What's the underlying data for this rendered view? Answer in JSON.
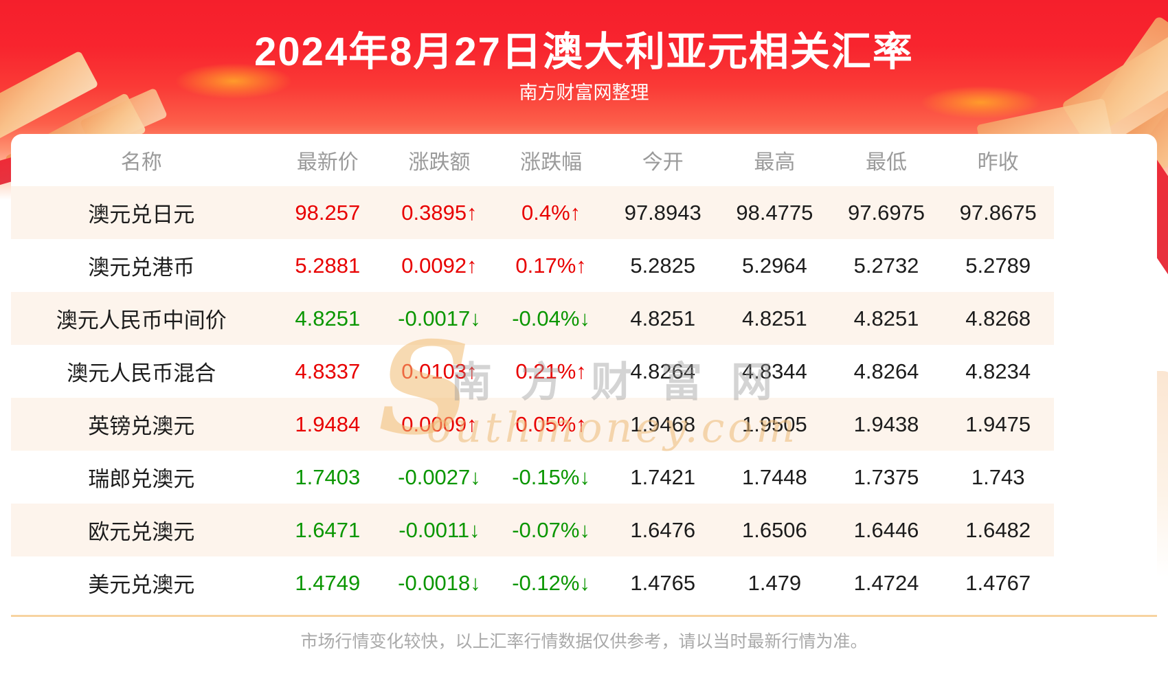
{
  "chart_data": {
    "type": "table",
    "title": "2024年8月27日澳大利亚元相关汇率",
    "subtitle": "南方财富网整理",
    "columns": [
      "名称",
      "最新价",
      "涨跌额",
      "涨跌幅",
      "今开",
      "最高",
      "最低",
      "昨收"
    ],
    "rows": [
      {
        "cells": [
          "澳元兑日元",
          "98.257",
          "0.3895↑",
          "0.4%↑",
          "97.8943",
          "98.4775",
          "97.6975",
          "97.8675"
        ],
        "direction": "up"
      },
      {
        "cells": [
          "澳元兑港币",
          "5.2881",
          "0.0092↑",
          "0.17%↑",
          "5.2825",
          "5.2964",
          "5.2732",
          "5.2789"
        ],
        "direction": "up"
      },
      {
        "cells": [
          "澳元人民币中间价",
          "4.8251",
          "-0.0017↓",
          "-0.04%↓",
          "4.8251",
          "4.8251",
          "4.8251",
          "4.8268"
        ],
        "direction": "down"
      },
      {
        "cells": [
          "澳元人民币混合",
          "4.8337",
          "0.0103↑",
          "0.21%↑",
          "4.8264",
          "4.8344",
          "4.8264",
          "4.8234"
        ],
        "direction": "up"
      },
      {
        "cells": [
          "英镑兑澳元",
          "1.9484",
          "0.0009↑",
          "0.05%↑",
          "1.9468",
          "1.9505",
          "1.9438",
          "1.9475"
        ],
        "direction": "up"
      },
      {
        "cells": [
          "瑞郎兑澳元",
          "1.7403",
          "-0.0027↓",
          "-0.15%↓",
          "1.7421",
          "1.7448",
          "1.7375",
          "1.743"
        ],
        "direction": "down"
      },
      {
        "cells": [
          "欧元兑澳元",
          "1.6471",
          "-0.0011↓",
          "-0.07%↓",
          "1.6476",
          "1.6506",
          "1.6446",
          "1.6482"
        ],
        "direction": "down"
      },
      {
        "cells": [
          "美元兑澳元",
          "1.4749",
          "-0.0018↓",
          "-0.12%↓",
          "1.4765",
          "1.479",
          "1.4724",
          "1.4767"
        ],
        "direction": "down"
      }
    ]
  },
  "watermark": {
    "initial": "S",
    "cn": "南方财富网",
    "en": "outhmoney.com"
  },
  "footer": {
    "note": "市场行情变化较快，以上汇率行情数据仅供参考，请以当时最新行情为准。"
  },
  "colors": {
    "up": "#e80000",
    "down": "#0a9600",
    "banner_top": "#f51f2c",
    "banner_bottom": "#fe8e6e",
    "row_alt": "#fdf4ec",
    "divider": "#f7d3a0",
    "header_text": "#9a9a9a",
    "value_text": "#1c1c1c",
    "footer_text": "#a9a9a9"
  }
}
